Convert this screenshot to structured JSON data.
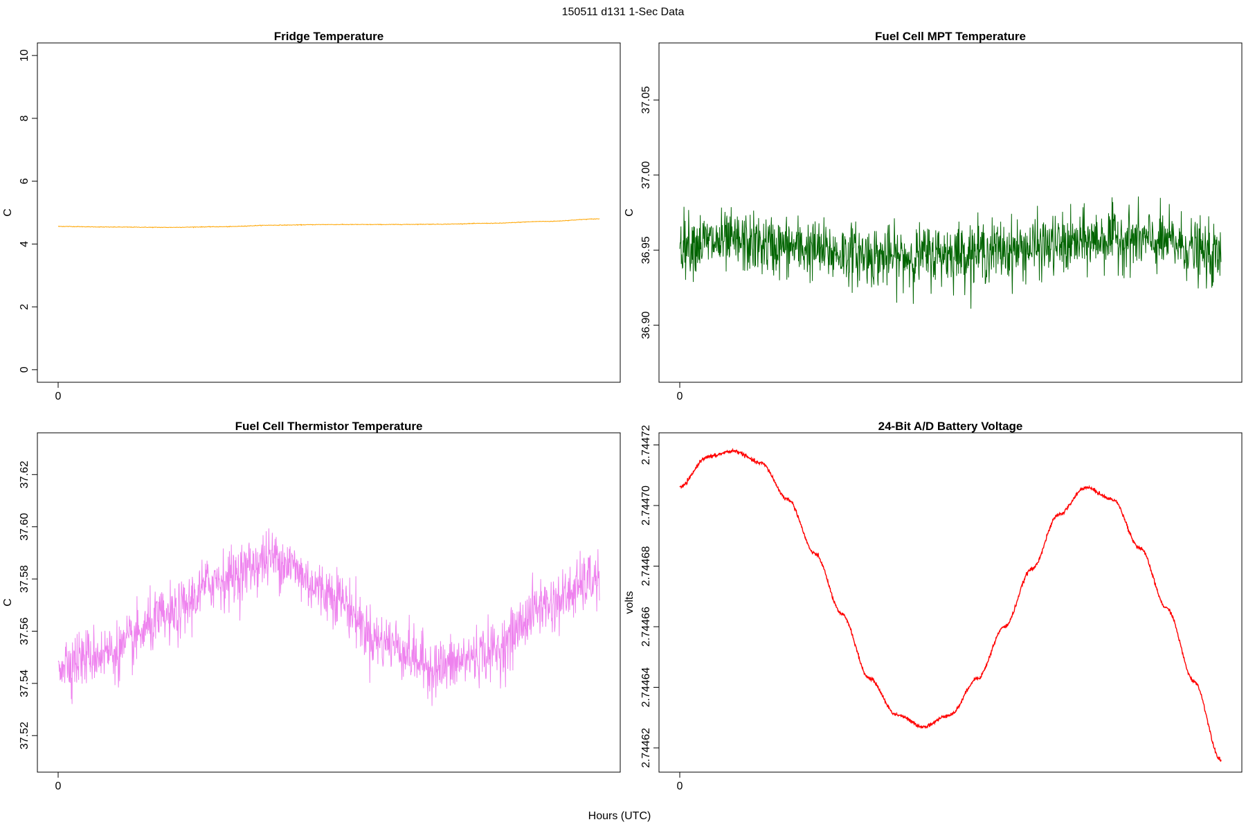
{
  "suptitle": "150511   d131   1-Sec Data",
  "xlabel": "Hours (UTC)",
  "chart_data": [
    {
      "type": "line",
      "title": "Fridge Temperature",
      "ylabel": "C",
      "color": "#FFA500",
      "ylim": [
        -0.4,
        10.4
      ],
      "yticks": [
        "0",
        "2",
        "4",
        "6",
        "8",
        "10"
      ],
      "xticks": [
        "0"
      ],
      "xlim": [
        0,
        1
      ],
      "series": [
        {
          "x": [
            0,
            0.1,
            0.2,
            0.3,
            0.4,
            0.5,
            0.6,
            0.7,
            0.8,
            0.9,
            1.0
          ],
          "values": [
            4.56,
            4.54,
            4.53,
            4.55,
            4.6,
            4.62,
            4.62,
            4.63,
            4.66,
            4.72,
            4.8
          ]
        }
      ],
      "noise": 0.01
    },
    {
      "type": "line",
      "title": "Fuel Cell MPT Temperature",
      "ylabel": "C",
      "color": "#006400",
      "ylim": [
        36.862,
        37.088
      ],
      "yticks": [
        "36.90",
        "36.95",
        "37.00",
        "37.05"
      ],
      "xticks": [
        "0"
      ],
      "xlim": [
        0,
        1
      ],
      "series": [
        {
          "x": [
            0,
            0.1,
            0.2,
            0.3,
            0.4,
            0.5,
            0.6,
            0.7,
            0.8,
            0.9,
            1.0
          ],
          "values": [
            36.955,
            36.955,
            36.952,
            36.948,
            36.945,
            36.948,
            36.95,
            36.953,
            36.958,
            36.955,
            36.945
          ]
        }
      ],
      "noise": 0.02
    },
    {
      "type": "line",
      "title": "Fuel Cell Thermistor Temperature",
      "ylabel": "C",
      "color": "#EE82EE",
      "ylim": [
        37.506,
        37.636
      ],
      "yticks": [
        "37.52",
        "37.54",
        "37.56",
        "37.58",
        "37.60",
        "37.62"
      ],
      "xticks": [
        "0"
      ],
      "xlim": [
        0,
        1
      ],
      "series": [
        {
          "x": [
            0,
            0.1,
            0.2,
            0.3,
            0.4,
            0.5,
            0.6,
            0.7,
            0.8,
            0.9,
            1.0
          ],
          "values": [
            37.548,
            37.552,
            37.565,
            37.58,
            37.588,
            37.575,
            37.556,
            37.546,
            37.552,
            37.57,
            37.58
          ]
        }
      ],
      "noise": 0.011
    },
    {
      "type": "line",
      "title": "24-Bit A/D Battery Voltage",
      "ylabel": "volts",
      "color": "#FF0000",
      "ylim": [
        2.744612,
        2.744724
      ],
      "yticks": [
        "2.74462",
        "2.74464",
        "2.74466",
        "2.74468",
        "2.74470",
        "2.74472"
      ],
      "xticks": [
        "0"
      ],
      "xlim": [
        0,
        1
      ],
      "series": [
        {
          "x": [
            0,
            0.05,
            0.1,
            0.15,
            0.2,
            0.25,
            0.3,
            0.35,
            0.4,
            0.45,
            0.5,
            0.55,
            0.6,
            0.65,
            0.7,
            0.75,
            0.8,
            0.85,
            0.9,
            0.95,
            1.0
          ],
          "values": [
            2.744706,
            2.744716,
            2.744718,
            2.744714,
            2.744702,
            2.744684,
            2.744664,
            2.744643,
            2.744631,
            2.744627,
            2.744631,
            2.744643,
            2.74466,
            2.744679,
            2.744697,
            2.744706,
            2.744702,
            2.744686,
            2.744666,
            2.744642,
            2.744616
          ]
        }
      ],
      "noise": 6e-07
    }
  ]
}
